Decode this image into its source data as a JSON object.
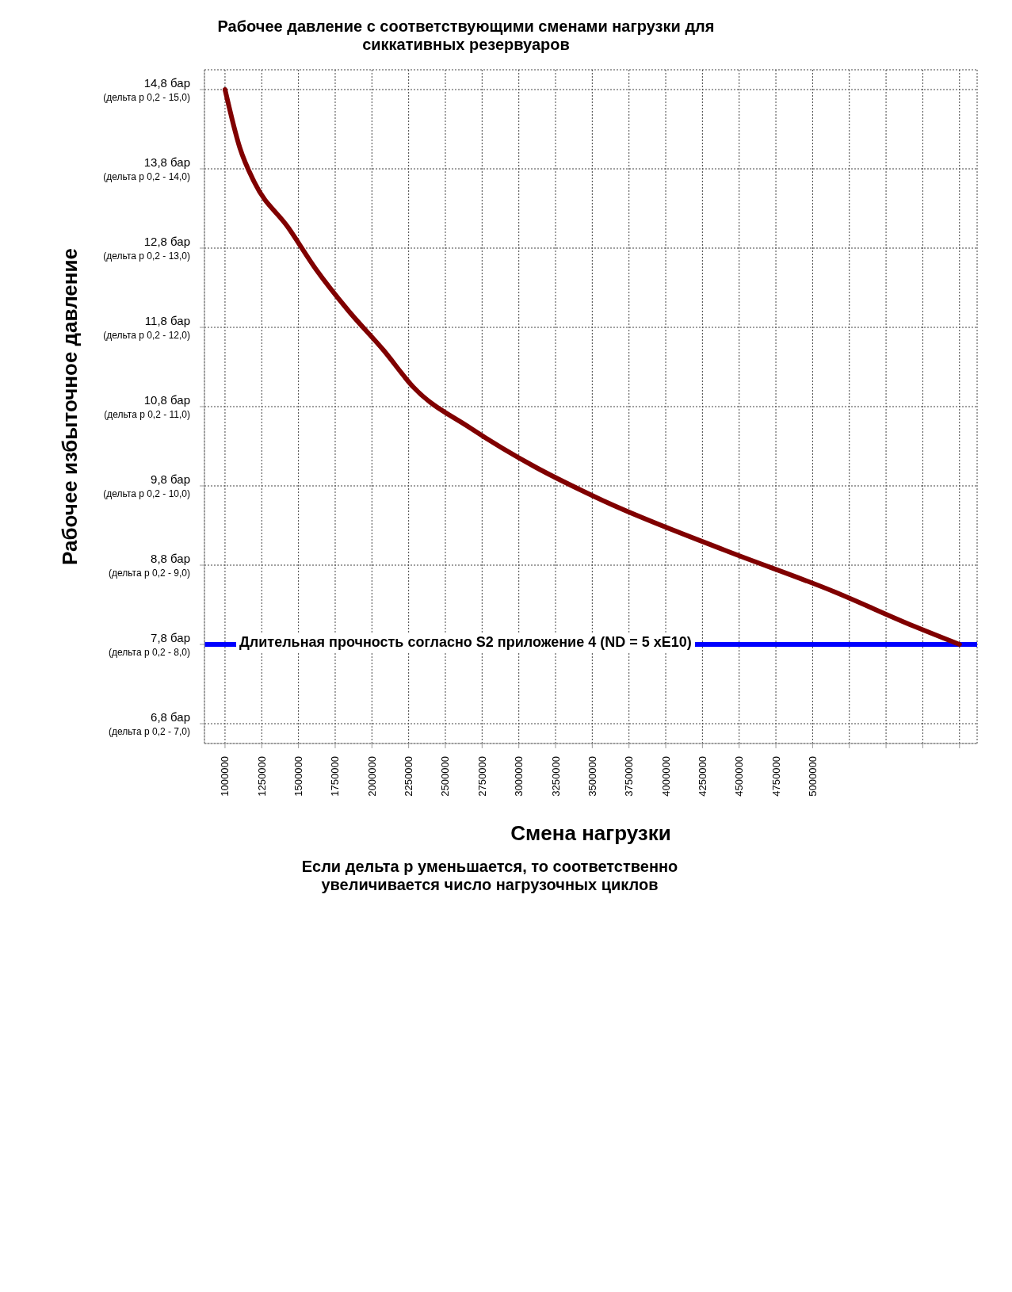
{
  "chart_data": {
    "type": "line",
    "title": "Рабочее давление с соответствующими сменами нагрузки для сиккативных резервуаров",
    "xlabel": "Смена нагрузки",
    "ylabel": "Рабочее избыточное давление",
    "annotations": [
      "Если дельта р уменьшается, то соответственно увеличивается число нагрузочных циклов",
      "Длительная прочность согласно S2  приложение 4 (ND = 5 xE10)",
      "(дельта р 0,2 - 15,0)",
      "(дельта р 0,2 - 14,0)",
      "(дельта р 0,2 - 13,0)",
      "(дельта р 0,2 - 12,0)",
      "(дельта р 0,2 - 11,0)",
      "(дельта р 0,2 - 10,0)",
      "(дельта р 0,2 - 9,0)",
      "(дельта р 0,2 - 8,0)",
      "(дельта р 0,2 - 7,0)"
    ],
    "series": [
      {
        "color": "#800000",
        "x": [
          1000000,
          1100000,
          1200000,
          1430000,
          1620000,
          1840000,
          2080000,
          2280000,
          2670000,
          3120000,
          3430000,
          3590000,
          4400000,
          5140000,
          5690000,
          6000000
        ],
        "values": [
          14.8,
          14.07,
          13.63,
          13.06,
          12.53,
          12.01,
          11.51,
          11.05,
          10.53,
          10.03,
          9.74,
          9.6,
          8.99,
          8.47,
          8.03,
          7.8
        ]
      }
    ],
    "ref_lines": [
      {
        "axis": "y",
        "value": 7.8,
        "color": "#0000ff"
      }
    ],
    "xlim": [
      860000,
      6120000
    ],
    "xticks": [
      1000000,
      1250000,
      1500000,
      1750000,
      2000000,
      2250000,
      2500000,
      2750000,
      3000000,
      3250000,
      3500000,
      3750000,
      4000000,
      4250000,
      4500000,
      4750000,
      5000000,
      {
        "value": 5250000,
        "label": null
      },
      {
        "value": 5500000,
        "label": null
      },
      {
        "value": 5750000,
        "label": null
      },
      {
        "value": 6000000,
        "label": null
      }
    ],
    "ylim": [
      6.55,
      15.05
    ],
    "yticks": [
      {
        "value": 14.8,
        "label": "14,8 бар"
      },
      {
        "value": 13.8,
        "label": "13,8 бар"
      },
      {
        "value": 12.8,
        "label": "12,8 бар"
      },
      {
        "value": 11.8,
        "label": "11,8 бар"
      },
      {
        "value": 10.8,
        "label": "10,8 бар"
      },
      {
        "value": 9.8,
        "label": "9,8 бар"
      },
      {
        "value": 8.8,
        "label": "8,8 бар"
      },
      {
        "value": 7.8,
        "label": "7,8 бар"
      },
      {
        "value": 6.8,
        "label": "6,8 бар"
      }
    ],
    "grid": true,
    "marker": "none",
    "line_style": "solid"
  }
}
